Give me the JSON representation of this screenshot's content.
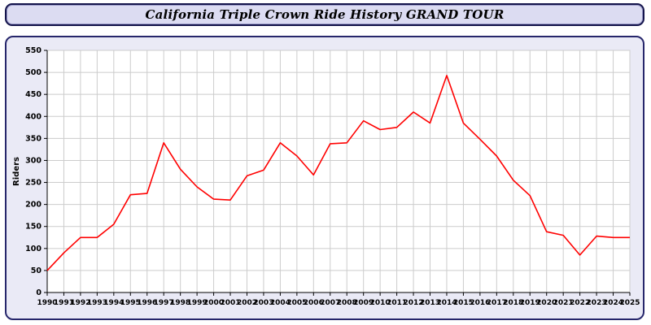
{
  "title_bar": {
    "title": "California Triple Crown Ride History GRAND TOUR"
  },
  "chart_data": {
    "type": "line",
    "title": "California Triple Crown Ride History GRAND TOUR",
    "xlabel": "",
    "ylabel": "Riders",
    "x": [
      1990,
      1991,
      1992,
      1993,
      1994,
      1995,
      1996,
      1997,
      1998,
      1999,
      2000,
      2001,
      2002,
      2003,
      2004,
      2005,
      2006,
      2007,
      2008,
      2009,
      2010,
      2011,
      2012,
      2013,
      2014,
      2015,
      2016,
      2017,
      2018,
      2019,
      2020,
      2021,
      2022,
      2023,
      2024,
      2025
    ],
    "values": [
      50,
      90,
      125,
      125,
      155,
      222,
      225,
      340,
      280,
      240,
      212,
      210,
      265,
      278,
      340,
      310,
      267,
      338,
      340,
      390,
      370,
      375,
      410,
      385,
      493,
      385,
      348,
      310,
      255,
      220,
      138,
      130,
      85,
      128,
      125,
      125
    ],
    "ylim": [
      0,
      550
    ],
    "ytick_step": 50,
    "grid": true,
    "legend": "none",
    "colors": {
      "line": "#ff0000",
      "plot_background": "#ffffff",
      "grid": "#cccccc",
      "axis": "#000000",
      "panel_background": "#eaeaf6",
      "title_background": "#dcdcf2",
      "border": "#26266b",
      "tick_text": "#000000"
    }
  }
}
